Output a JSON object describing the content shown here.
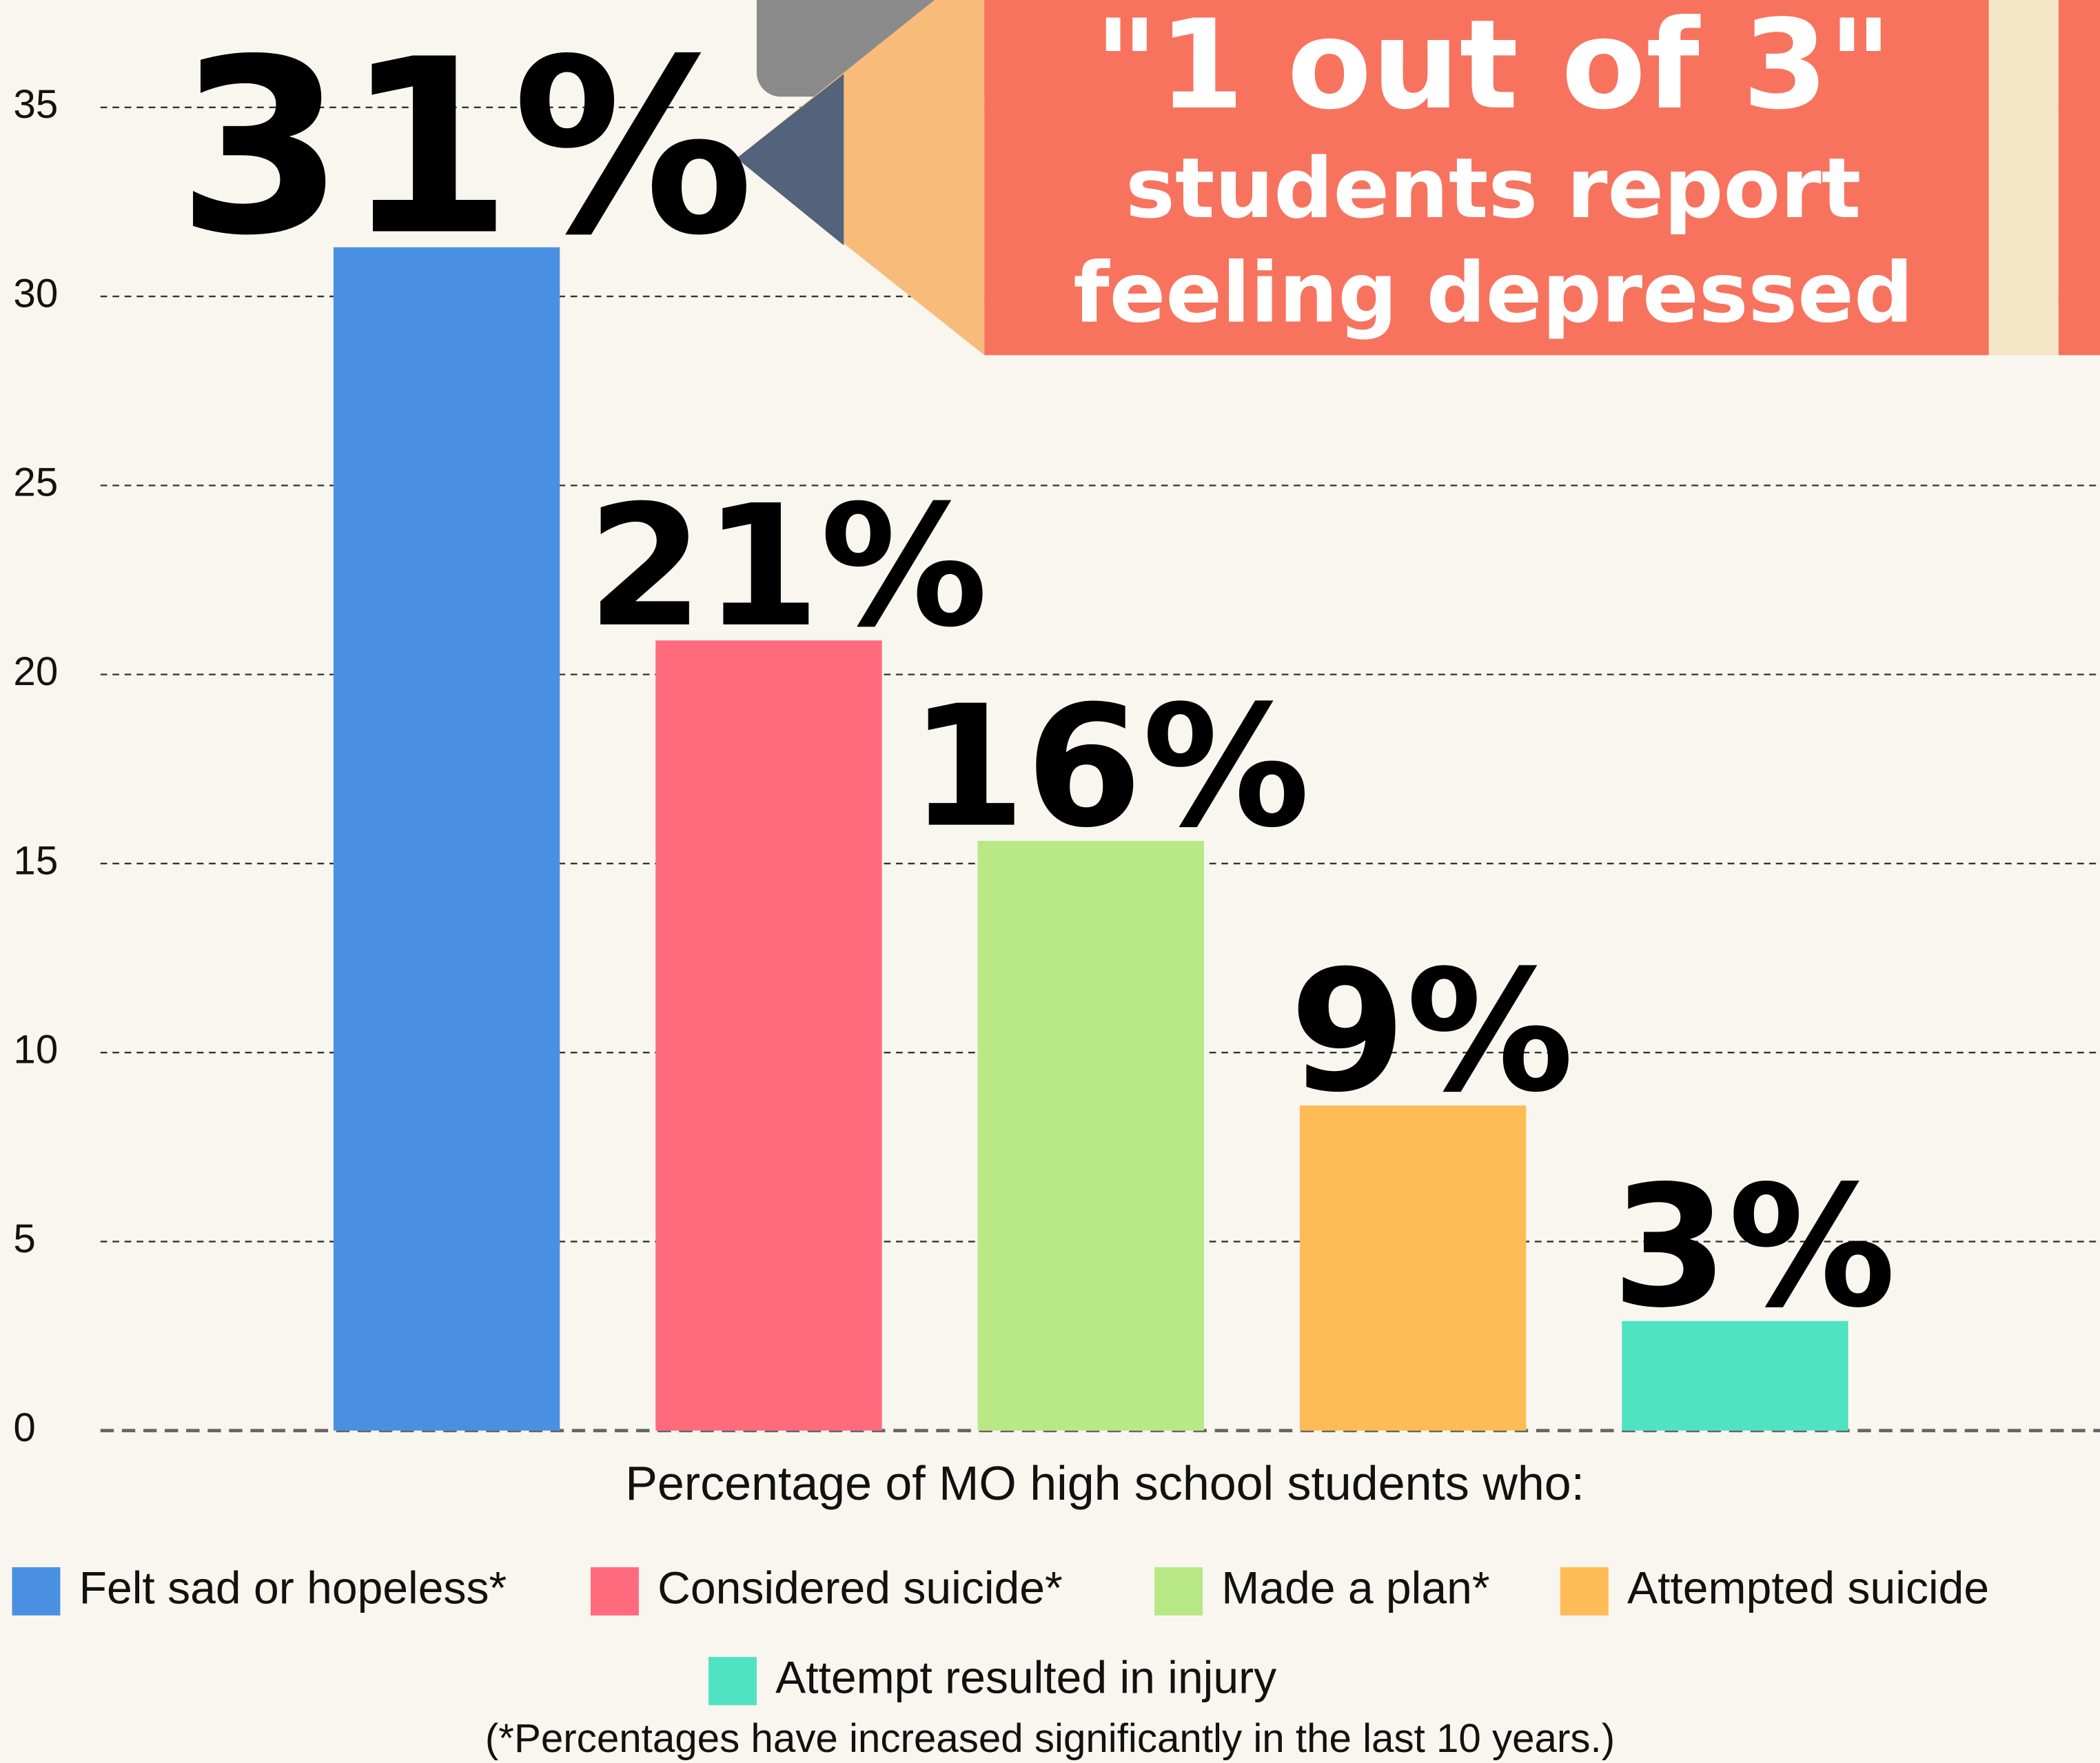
{
  "chart_data": {
    "type": "bar",
    "annotation": [
      "\"1 out of 3\"",
      "students report",
      "feeling depressed"
    ],
    "x_label": "Percentage of MO high school students who:",
    "footnote": "(*Percentages have increased significantly in the last 10 years.)",
    "categories": [
      "Felt sad or hopeless*",
      "Considered suicide*",
      "Made a plan*",
      "Attempted suicide",
      "Attempt resulted in injury"
    ],
    "values": [
      31.3,
      20.9,
      15.6,
      8.6,
      2.9
    ],
    "value_labels": [
      "31%",
      "21%",
      "16%",
      "9%",
      "3%"
    ],
    "colors": [
      "#4a90e2",
      "#ff6b7d",
      "#b8e986",
      "#ffbb55",
      "#50e3c2"
    ],
    "ylim": [
      0,
      35
    ],
    "yticks": [
      0,
      5,
      10,
      15,
      20,
      25,
      30,
      35
    ],
    "grid": true
  }
}
